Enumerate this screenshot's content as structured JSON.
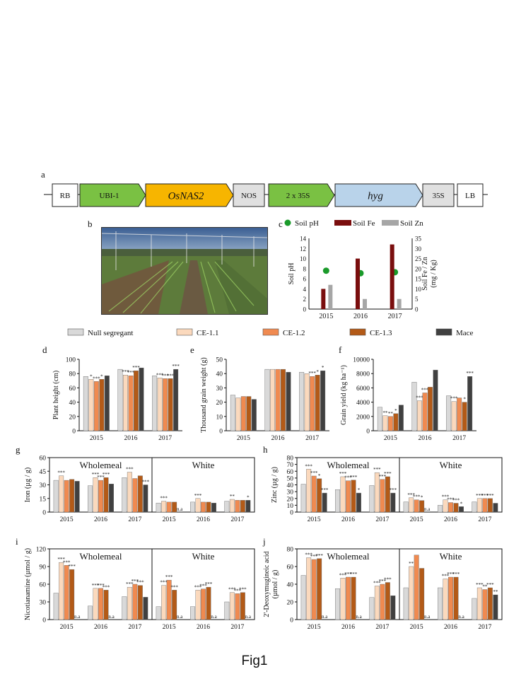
{
  "figure_caption": "Fig1",
  "construct": {
    "panel": "a",
    "parts": [
      {
        "label": "RB",
        "shape": "box",
        "color": "#ffffff",
        "italic": false,
        "fill_kind": "plain"
      },
      {
        "label": "UBI-1",
        "shape": "arrow",
        "color": "#7ac143",
        "italic": false
      },
      {
        "label": "OsNAS2",
        "shape": "arrow",
        "color": "#f7b500",
        "italic": true
      },
      {
        "label": "NOS",
        "shape": "box",
        "color": "#e0e0e0",
        "italic": false
      },
      {
        "label": "2 x 35S",
        "shape": "arrow",
        "color": "#7ac143",
        "italic": false
      },
      {
        "label": "hyg",
        "shape": "arrow",
        "color": "#b9d3ea",
        "italic": true
      },
      {
        "label": "35S",
        "shape": "box",
        "color": "#e0e0e0",
        "italic": false
      },
      {
        "label": "LB",
        "shape": "box",
        "color": "#ffffff",
        "italic": false
      }
    ]
  },
  "photo_panel": "b",
  "legend": {
    "entries": [
      "Null segregant",
      "CE-1.1",
      "CE-1.2",
      "CE-1.3",
      "Mace"
    ],
    "colors": [
      "#d9d9d9",
      "#fbd9bd",
      "#f08a50",
      "#b35a17",
      "#404040"
    ]
  },
  "chart_data": [
    {
      "panel": "c",
      "type": "bar",
      "categories": [
        "2015",
        "2016",
        "2017"
      ],
      "legend": [
        "Soil pH",
        "Soil Fe",
        "Soil Zn"
      ],
      "series": [
        {
          "name": "Soil pH",
          "kind": "point",
          "axis": "left",
          "color": "#1a9a2a",
          "values": [
            7.6,
            7.1,
            7.3
          ]
        },
        {
          "name": "Soil Fe",
          "kind": "bar",
          "axis": "right",
          "color": "#7a0e0e",
          "values": [
            10,
            25,
            32
          ]
        },
        {
          "name": "Soil Zn",
          "kind": "bar",
          "axis": "right",
          "color": "#a6a6a6",
          "values": [
            12,
            5,
            5
          ]
        }
      ],
      "ylabel": "Soil pH",
      "y2label": "Soil Fe / Zn\n(mg / Kg)",
      "ylim": [
        0,
        14
      ],
      "y2lim": [
        0,
        35
      ],
      "yticks": [
        "0",
        "2",
        "4",
        "6",
        "8",
        "10",
        "12",
        "14"
      ],
      "y2ticks": [
        "0",
        "5",
        "10",
        "15",
        "20",
        "25",
        "30",
        "35"
      ]
    },
    {
      "panel": "d",
      "type": "bar",
      "categories": [
        "2015",
        "2016",
        "2017"
      ],
      "ylabel": "Plant height (cm)",
      "ylim": [
        0,
        100
      ],
      "yticks": [
        "0",
        "20",
        "40",
        "60",
        "80",
        "100"
      ],
      "series": [
        {
          "name": "Null segregant",
          "values": [
            76,
            86,
            77
          ]
        },
        {
          "name": "CE-1.1",
          "values": [
            72,
            78,
            74
          ]
        },
        {
          "name": "CE-1.2",
          "values": [
            69,
            77,
            73
          ]
        },
        {
          "name": "CE-1.3",
          "values": [
            72,
            84,
            73
          ]
        },
        {
          "name": "Mace",
          "values": [
            77,
            88,
            86
          ]
        }
      ],
      "stars": [
        [
          "",
          "*",
          "***",
          "*",
          ""
        ],
        [
          "",
          "***",
          "***",
          "***",
          ""
        ],
        [
          "",
          "***",
          "***",
          "***",
          "***"
        ]
      ]
    },
    {
      "panel": "e",
      "type": "bar",
      "categories": [
        "2015",
        "2016",
        "2017"
      ],
      "ylabel": "Thousand grain weight (g)",
      "ylim": [
        0,
        50
      ],
      "yticks": [
        "0",
        "10",
        "20",
        "30",
        "40",
        "50"
      ],
      "series": [
        {
          "name": "Null segregant",
          "values": [
            25,
            43,
            41
          ]
        },
        {
          "name": "CE-1.1",
          "values": [
            23,
            43,
            40
          ]
        },
        {
          "name": "CE-1.2",
          "values": [
            24,
            43,
            38
          ]
        },
        {
          "name": "CE-1.3",
          "values": [
            24,
            43,
            39
          ]
        },
        {
          "name": "Mace",
          "values": [
            22,
            41,
            42
          ]
        }
      ],
      "stars": [
        [
          "",
          "",
          "",
          "",
          ""
        ],
        [
          "",
          "",
          "",
          "",
          ""
        ],
        [
          "",
          "",
          "***",
          "*",
          "*"
        ]
      ]
    },
    {
      "panel": "f",
      "type": "bar",
      "categories": [
        "2015",
        "2016",
        "2017"
      ],
      "ylabel": "Grain yield (kg ha⁻¹)",
      "ylim": [
        0,
        10000
      ],
      "yticks": [
        "0",
        "2000",
        "4000",
        "6000",
        "8000",
        "10000"
      ],
      "series": [
        {
          "name": "Null segregant",
          "values": [
            3300,
            6800,
            4900
          ]
        },
        {
          "name": "CE-1.1",
          "values": [
            2100,
            4200,
            4100
          ]
        },
        {
          "name": "CE-1.2",
          "values": [
            2000,
            5300,
            4600
          ]
        },
        {
          "name": "CE-1.3",
          "values": [
            2400,
            6100,
            4000
          ]
        },
        {
          "name": "Mace",
          "values": [
            3600,
            8500,
            7600
          ]
        }
      ],
      "stars": [
        [
          "",
          "**",
          "**",
          "*",
          ""
        ],
        [
          "",
          "***",
          "***",
          "",
          ""
        ],
        [
          "",
          "***",
          "",
          "*",
          "***"
        ]
      ]
    },
    {
      "panel": "g",
      "type": "bar",
      "groups": [
        "Wholemeal",
        "White"
      ],
      "categories": [
        "2015",
        "2016",
        "2017",
        "2015",
        "2016",
        "2017"
      ],
      "ylabel": "Iron (µg / g)",
      "ylim": [
        0,
        60
      ],
      "yticks": [
        "0",
        "15",
        "30",
        "45",
        "60"
      ],
      "series": [
        {
          "name": "Null segregant",
          "values": [
            35,
            29,
            38,
            10,
            11,
            12
          ]
        },
        {
          "name": "CE-1.1",
          "values": [
            40,
            38,
            44,
            12,
            15,
            14
          ]
        },
        {
          "name": "CE-1.2",
          "values": [
            35,
            35,
            37,
            11,
            11,
            13
          ]
        },
        {
          "name": "CE-1.3",
          "values": [
            36,
            38,
            40,
            11,
            11,
            13
          ]
        },
        {
          "name": "Mace",
          "values": [
            34,
            31,
            30,
            0,
            10,
            13
          ]
        }
      ],
      "stars": [
        [
          "",
          "***",
          "",
          "",
          ""
        ],
        [
          "",
          "***",
          "***",
          "***",
          ""
        ],
        [
          "",
          "***",
          "",
          "",
          "***"
        ],
        [
          "",
          "***",
          "",
          "",
          "n.a"
        ],
        [
          "",
          "***",
          "",
          "",
          ""
        ],
        [
          "",
          "**",
          "",
          "",
          "*"
        ]
      ]
    },
    {
      "panel": "h",
      "type": "bar",
      "groups": [
        "Wholemeal",
        "White"
      ],
      "categories": [
        "2015",
        "2016",
        "2017",
        "2015",
        "2016",
        "2017"
      ],
      "ylabel": "Zinc (µg / g)",
      "ylim": [
        0,
        80
      ],
      "yticks": [
        "0",
        "10",
        "20",
        "30",
        "40",
        "50",
        "60",
        "70",
        "80"
      ],
      "series": [
        {
          "name": "Null segregant",
          "values": [
            41,
            33,
            39,
            15,
            10,
            15
          ]
        },
        {
          "name": "CE-1.1",
          "values": [
            63,
            52,
            58,
            21,
            18,
            20
          ]
        },
        {
          "name": "CE-1.2",
          "values": [
            53,
            46,
            48,
            18,
            14,
            20
          ]
        },
        {
          "name": "CE-1.3",
          "values": [
            49,
            47,
            52,
            17,
            13,
            20
          ]
        },
        {
          "name": "Mace",
          "values": [
            28,
            28,
            28,
            0,
            8,
            13
          ]
        }
      ],
      "stars": [
        [
          "",
          "***",
          "***",
          "*",
          "***"
        ],
        [
          "",
          "***",
          "***",
          "***",
          "*"
        ],
        [
          "",
          "***",
          "***",
          "***",
          "***"
        ],
        [
          "",
          "***",
          "***",
          "*",
          "n.a"
        ],
        [
          "",
          "***",
          "***",
          "***",
          "*"
        ],
        [
          "",
          "***",
          "***",
          "***",
          ""
        ]
      ]
    },
    {
      "panel": "i",
      "type": "bar",
      "groups": [
        "Wholemeal",
        "White"
      ],
      "categories": [
        "2015",
        "2016",
        "2017",
        "2015",
        "2016",
        "2017"
      ],
      "ylabel": "Nicotianamine (µmol / g)",
      "ylim": [
        0,
        120
      ],
      "yticks": [
        "0",
        "30",
        "60",
        "90",
        "120"
      ],
      "series": [
        {
          "name": "Null segregant",
          "values": [
            45,
            23,
            39,
            22,
            22,
            30
          ]
        },
        {
          "name": "CE-1.1",
          "values": [
            97,
            53,
            55,
            58,
            50,
            46
          ]
        },
        {
          "name": "CE-1.2",
          "values": [
            92,
            53,
            60,
            67,
            52,
            44
          ]
        },
        {
          "name": "CE-1.3",
          "values": [
            85,
            50,
            58,
            50,
            55,
            46
          ]
        },
        {
          "name": "Mace",
          "values": [
            0,
            0,
            38,
            0,
            0,
            0
          ]
        }
      ],
      "stars": [
        [
          "",
          "***",
          "***",
          "***",
          "n.a"
        ],
        [
          "",
          "***",
          "***",
          "***",
          "n.a"
        ],
        [
          "",
          "***",
          "***",
          "***",
          ""
        ],
        [
          "",
          "***",
          "***",
          "***",
          "n.a"
        ],
        [
          "",
          "***",
          "***",
          "***",
          "n.a"
        ],
        [
          "",
          "***",
          "***",
          "***",
          "n.a"
        ]
      ]
    },
    {
      "panel": "j",
      "type": "bar",
      "groups": [
        "Wholemeal",
        "White"
      ],
      "categories": [
        "2015",
        "2016",
        "2017",
        "2015",
        "2016",
        "2017"
      ],
      "ylabel": "2'-Deoxymugineic acid\n(µmol / g)",
      "ylim": [
        0,
        80
      ],
      "yticks": [
        "0",
        "20",
        "40",
        "60",
        "80"
      ],
      "series": [
        {
          "name": "Null segregant",
          "values": [
            50,
            35,
            25,
            36,
            36,
            24
          ]
        },
        {
          "name": "CE-1.1",
          "values": [
            70,
            47,
            38,
            60,
            46,
            36
          ]
        },
        {
          "name": "CE-1.2",
          "values": [
            68,
            48,
            40,
            73,
            48,
            34
          ]
        },
        {
          "name": "CE-1.3",
          "values": [
            69,
            48,
            42,
            58,
            48,
            36
          ]
        },
        {
          "name": "Mace",
          "values": [
            0,
            0,
            27,
            0,
            0,
            28
          ]
        }
      ],
      "stars": [
        [
          "",
          "***",
          "***",
          "***",
          "n.a"
        ],
        [
          "",
          "***",
          "***",
          "***",
          "n.a"
        ],
        [
          "",
          "***",
          "***",
          "***",
          ""
        ],
        [
          "",
          "**",
          "",
          "",
          "n.a"
        ],
        [
          "",
          "***",
          "***",
          "***",
          "n.a"
        ],
        [
          "",
          "***",
          "**",
          "***",
          "**"
        ]
      ]
    }
  ]
}
